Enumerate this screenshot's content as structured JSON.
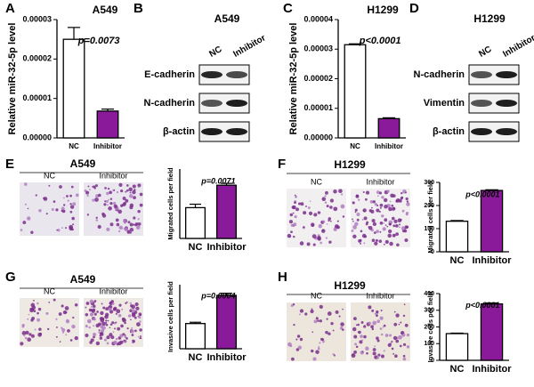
{
  "chart_data": [
    {
      "type": "bar",
      "panel": "A",
      "title": "A549",
      "y_label": "Relative miR-32-5p level",
      "annotation": "p=0.0073",
      "categories": [
        "NC",
        "Inhibitor"
      ],
      "values": [
        2.5e-05,
        6.8e-06
      ],
      "errors": [
        3e-06,
        5e-07
      ],
      "colors": [
        "#ffffff",
        "#8b1a9a"
      ],
      "ylim": [
        0,
        3e-05
      ],
      "yticks": [
        {
          "value": 0,
          "label": "0.00000"
        },
        {
          "value": 1e-05,
          "label": "0.00001"
        },
        {
          "value": 2e-05,
          "label": "0.00002"
        },
        {
          "value": 3e-05,
          "label": "0.00003"
        }
      ]
    },
    {
      "type": "bar",
      "panel": "C",
      "title": "H1299",
      "y_label": "Relative miR-32-5p level",
      "annotation": "p<0.0001",
      "categories": [
        "NC",
        "Inhibitor"
      ],
      "values": [
        3.15e-05,
        6.5e-06
      ],
      "errors": [
        3e-07,
        3e-07
      ],
      "colors": [
        "#ffffff",
        "#8b1a9a"
      ],
      "ylim": [
        0,
        4e-05
      ],
      "yticks": [
        {
          "value": 0,
          "label": "0.00000"
        },
        {
          "value": 1e-05,
          "label": "0.00001"
        },
        {
          "value": 2e-05,
          "label": "0.00002"
        },
        {
          "value": 3e-05,
          "label": "0.00003"
        },
        {
          "value": 4e-05,
          "label": "0.00004"
        }
      ]
    },
    {
      "type": "bar",
      "panel": "E",
      "y_label": "Migrated cells per field",
      "annotation": "p=0.0071",
      "categories": [
        "NC",
        "Inhibitor"
      ],
      "values": [
        133,
        230
      ],
      "errors": [
        15,
        8
      ],
      "colors": [
        "#ffffff",
        "#8b1a9a"
      ],
      "ylim": [
        0,
        300
      ]
    },
    {
      "type": "bar",
      "panel": "F",
      "y_label": "Migrated cells per field",
      "annotation": "p<0.0001",
      "categories": [
        "NC",
        "Inhibitor"
      ],
      "values": [
        132,
        265
      ],
      "errors": [
        3,
        3
      ],
      "colors": [
        "#ffffff",
        "#8b1a9a"
      ],
      "ylim": [
        0,
        300
      ],
      "yticks": [
        0,
        100,
        200,
        300
      ]
    },
    {
      "type": "bar",
      "panel": "G",
      "y_label": "Invasive cells per field",
      "annotation": "p=0.0004",
      "categories": [
        "NC",
        "Inhibitor"
      ],
      "values": [
        118,
        250
      ],
      "errors": [
        6,
        10
      ],
      "colors": [
        "#ffffff",
        "#8b1a9a"
      ],
      "ylim": [
        0,
        300
      ]
    },
    {
      "type": "bar",
      "panel": "H",
      "y_label": "Invasive cells per field",
      "annotation": "p<0.0001",
      "categories": [
        "NC",
        "Inhibitor"
      ],
      "values": [
        160,
        338
      ],
      "errors": [
        3,
        6
      ],
      "colors": [
        "#ffffff",
        "#8b1a9a"
      ],
      "ylim": [
        0,
        400
      ],
      "yticks": [
        0,
        100,
        200,
        300,
        400
      ]
    }
  ],
  "blots": [
    {
      "panel": "B",
      "title": "A549",
      "lanes": [
        "NC",
        "Inhibitor"
      ],
      "rows": [
        "E-cadherin",
        "N-cadherin",
        "β-actin"
      ]
    },
    {
      "panel": "D",
      "title": "H1299",
      "lanes": [
        "NC",
        "Inhibitor"
      ],
      "rows": [
        "N-cadherin",
        "Vimentin",
        "β-actin"
      ]
    }
  ],
  "micrographs": [
    {
      "title": "A549",
      "labels": [
        "NC",
        "Inhibitor"
      ]
    },
    {
      "title": "H1299",
      "labels": [
        "NC",
        "Inhibitor"
      ]
    },
    {
      "title": "A549",
      "labels": [
        "NC",
        "Inhibitor"
      ]
    },
    {
      "title": "H1299",
      "labels": [
        "NC",
        "Inhibitor"
      ]
    }
  ]
}
